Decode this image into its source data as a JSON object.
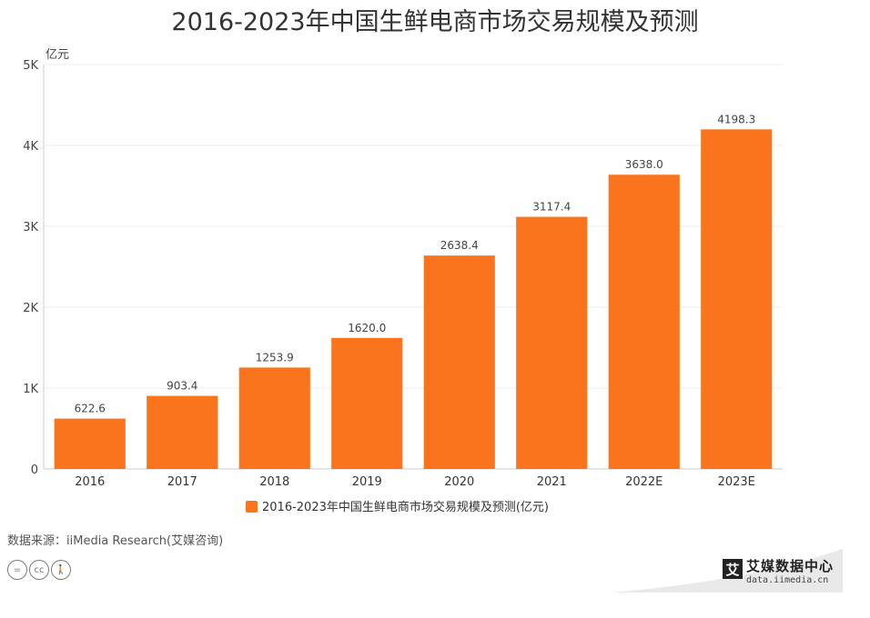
{
  "chart_data": {
    "type": "bar",
    "title": "2016-2023年中国生鲜电商市场交易规模及预测",
    "ylabel": "亿元",
    "categories": [
      "2016",
      "2017",
      "2018",
      "2019",
      "2020",
      "2021",
      "2022E",
      "2023E"
    ],
    "series": [
      {
        "name": "2016-2023年中国生鲜电商市场交易规模及预测(亿元)",
        "values": [
          622.6,
          903.4,
          1253.9,
          1620.0,
          2638.4,
          3117.4,
          3638.0,
          4198.3
        ]
      }
    ],
    "value_labels": [
      "622.6",
      "903.4",
      "1253.9",
      "1620.0",
      "2638.4",
      "3117.4",
      "3638.0",
      "4198.3"
    ],
    "ylim": [
      0,
      5000
    ],
    "yticks": [
      0,
      1000,
      2000,
      3000,
      4000,
      5000
    ],
    "ytick_labels": [
      "0",
      "1K",
      "2K",
      "3K",
      "4K",
      "5K"
    ],
    "grid": true,
    "legend_position": "bottom",
    "color": "#FA741E"
  },
  "footer": {
    "source": "数据来源：iiMedia Research(艾媒咨询)",
    "license_icons": [
      "equals-icon",
      "cc-icon",
      "person-icon"
    ],
    "brand_name": "艾媒数据中心",
    "brand_url": "data.iimedia.cn",
    "brand_logo_char": "艾"
  }
}
